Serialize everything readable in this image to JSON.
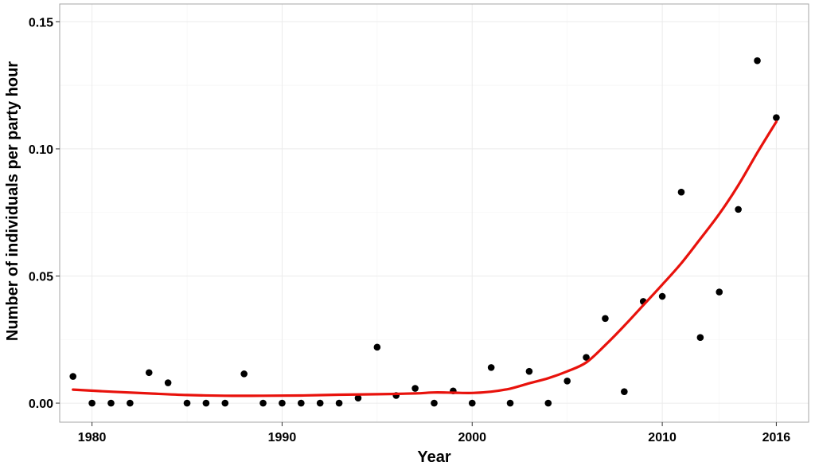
{
  "chart_data": {
    "type": "scatter",
    "title": "",
    "xlabel": "Year",
    "ylabel": "Number of individuals per party hour",
    "xlim": [
      1978.3,
      2017.7
    ],
    "ylim": [
      -0.0075,
      0.157
    ],
    "x_ticks": [
      1980,
      1990,
      2000,
      2010,
      2016
    ],
    "x_tick_labels": [
      "1980",
      "1990",
      "2000",
      "2010",
      "2016"
    ],
    "y_ticks": [
      0.0,
      0.05,
      0.1,
      0.15
    ],
    "y_tick_labels": [
      "0.00",
      "0.05",
      "0.10",
      "0.15"
    ],
    "grid": true,
    "legend": "none",
    "colors": {
      "points": "#000000",
      "trend": "#e8120c",
      "grid": "#ebebeb",
      "panel_border": "#a6a6a6"
    },
    "series": [
      {
        "kind": "points",
        "x": [
          1979,
          1980,
          1981,
          1982,
          1983,
          1984,
          1985,
          1986,
          1987,
          1988,
          1989,
          1990,
          1991,
          1992,
          1993,
          1994,
          1995,
          1996,
          1997,
          1998,
          1999,
          2000,
          2001,
          2002,
          2003,
          2004,
          2005,
          2006,
          2007,
          2008,
          2009,
          2010,
          2011,
          2012,
          2013,
          2014,
          2015,
          2016
        ],
        "y": [
          0.0105,
          0.0,
          0.0,
          0.0,
          0.012,
          0.008,
          0.0,
          0.0,
          0.0,
          0.0115,
          0.0,
          0.0,
          0.0,
          0.0,
          0.0,
          0.002,
          0.022,
          0.003,
          0.0058,
          0.0,
          0.0048,
          0.0,
          0.014,
          0.0,
          0.0125,
          0.0,
          0.0087,
          0.018,
          0.0333,
          0.0045,
          0.04,
          0.042,
          0.083,
          0.0258,
          0.0437,
          0.0762,
          0.1347,
          0.1123
        ]
      },
      {
        "kind": "smooth",
        "x": [
          1979,
          1981,
          1983,
          1985,
          1987,
          1989,
          1991,
          1993,
          1995,
          1997,
          1998,
          1999,
          2000,
          2001,
          2002,
          2003,
          2004,
          2005,
          2006,
          2007,
          2008,
          2009,
          2010,
          2011,
          2012,
          2013,
          2014,
          2015,
          2016
        ],
        "y": [
          0.0053,
          0.0045,
          0.0038,
          0.0032,
          0.0029,
          0.0029,
          0.003,
          0.0033,
          0.0035,
          0.0038,
          0.0042,
          0.0041,
          0.004,
          0.0045,
          0.0057,
          0.0078,
          0.0098,
          0.0125,
          0.016,
          0.0228,
          0.0304,
          0.0385,
          0.0466,
          0.055,
          0.0646,
          0.0744,
          0.0857,
          0.0985,
          0.1107
        ]
      }
    ]
  }
}
